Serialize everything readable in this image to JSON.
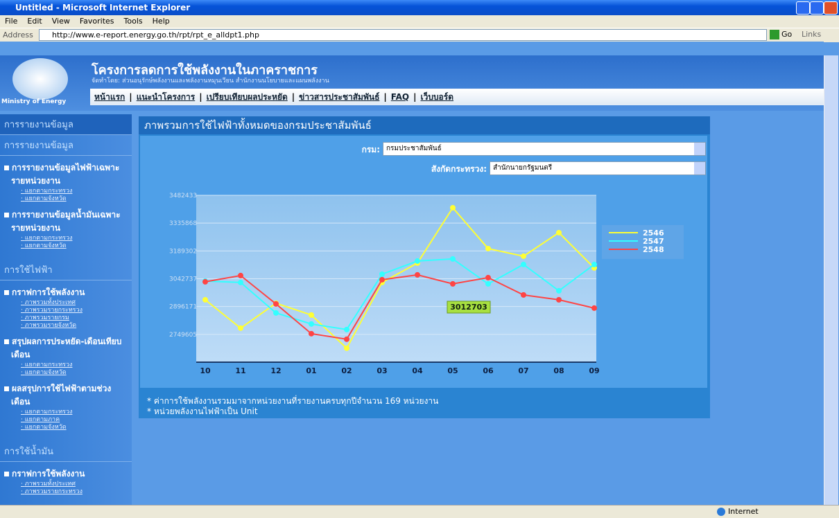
{
  "window": {
    "title": "Untitled - Microsoft Internet Explorer",
    "menu": [
      "File",
      "Edit",
      "View",
      "Favorites",
      "Tools",
      "Help"
    ],
    "address_label": "Address",
    "url": "http://www.e-report.energy.go.th/rpt/rpt_e_alldpt1.php",
    "go": "Go",
    "links": "Links",
    "status": "Internet"
  },
  "header": {
    "title": "โครงการลดการใช้พลังงานในภาคราชการ",
    "subtitle": "จัดทำโดย: ส่วนอนุรักษ์พลังงานและพลังงานหมุนเวียน สำนักงานนโยบายและแผนพลังงาน",
    "logo_text": "Ministry of Energy",
    "nav": [
      "หน้าแรก",
      "แนะนำโครงการ",
      "เปรียบเทียบผลประหยัด",
      "ข่าวสารประชาสัมพันธ์",
      "FAQ",
      "เว็บบอร์ด"
    ]
  },
  "sidebar": {
    "heading": "การรายงานข้อมูล",
    "sections": [
      {
        "title": "การรายงานข้อมูล",
        "items": [
          {
            "label": "การรายงานข้อมูลไฟฟ้าเฉพาะรายหน่วยงาน",
            "links": [
              "แยกตามกระทรวง",
              "แยกตามจังหวัด"
            ]
          },
          {
            "label": "การรายงานข้อมูลน้ำมันเฉพาะรายหน่วยงาน",
            "links": [
              "แยกตามกระทรวง",
              "แยกตามจังหวัด"
            ]
          }
        ]
      },
      {
        "title": "การใช้ไฟฟ้า",
        "items": [
          {
            "label": "กราฟการใช้พลังงาน",
            "links": [
              "ภาพรวมทั้งประเทศ",
              "ภาพรวมรายกระทรวง",
              "ภาพรวมรายกรม",
              "ภาพรวมรายจังหวัด"
            ]
          },
          {
            "label": "สรุปผลการประหยัด-เดือนเทียบเดือน",
            "links": [
              "แยกตามกระทรวง",
              "แยกตามจังหวัด"
            ]
          },
          {
            "label": "ผลสรุปการใช้ไฟฟ้าตามช่วงเดือน",
            "links": [
              "แยกตามกระทรวง",
              "แยกตามภาค",
              "แยกตามจังหวัด"
            ]
          }
        ]
      },
      {
        "title": "การใช้น้ำมัน",
        "items": [
          {
            "label": "กราฟการใช้พลังงาน",
            "links": [
              "ภาพรวมทั้งประเทศ",
              "ภาพรวมรายกระทรวง"
            ]
          }
        ]
      }
    ]
  },
  "panel": {
    "title": "ภาพรวมการใช้ไฟฟ้าทั้งหมดของกรมประชาสัมพันธ์",
    "filters": [
      {
        "label": "กรม:",
        "value": "กรมประชาสัมพันธ์"
      },
      {
        "label": "สังกัดกระทรวง:",
        "value": "สำนักนายกรัฐมนตรี"
      }
    ],
    "notes": [
      "* ค่าการใช้พลังงานรวมมาจากหน่วยงานที่รายงานครบทุกปีจำนวน 169 หน่วยงาน",
      "* หน่วยพลังงานไฟฟ้าเป็น Unit"
    ]
  },
  "chart_data": {
    "type": "line",
    "categories": [
      "10",
      "11",
      "12",
      "01",
      "02",
      "03",
      "04",
      "05",
      "06",
      "07",
      "08",
      "09"
    ],
    "series": [
      {
        "name": "2546",
        "color": "#ffff33",
        "values": [
          2931887,
          2782401,
          2913657,
          2851675,
          2676667,
          3023037,
          3125125,
          3416805,
          3201691,
          3161585,
          3285549,
          3099603
        ]
      },
      {
        "name": "2547",
        "color": "#33ffff",
        "values": [
          3030329,
          3023037,
          2862613,
          2804277,
          2775109,
          3066789,
          3136063,
          3147001,
          3015745,
          3117833,
          2979285,
          3117833
        ]
      },
      {
        "name": "2548",
        "color": "#ff4444",
        "values": [
          3026683,
          3059497,
          2910011,
          2753233,
          2724065,
          3037621,
          3063143,
          3015745,
          3048559,
          2957409,
          2931887,
          2888135
        ]
      }
    ],
    "ylim": [
      2603039,
      3482433
    ],
    "yticks": [
      2749605,
      2896171,
      3042737,
      3189302,
      3335868,
      3482433
    ],
    "grid": true,
    "legend": "right",
    "annotation": "3012703"
  }
}
